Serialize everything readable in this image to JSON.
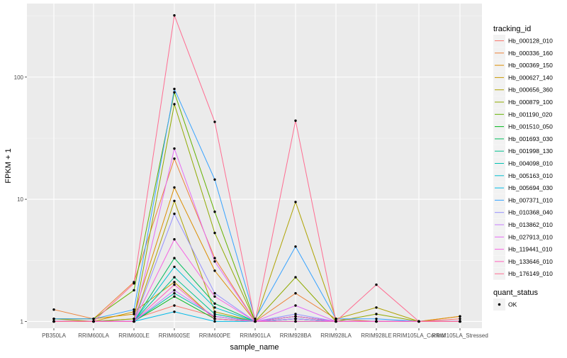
{
  "chart_data": {
    "type": "line",
    "title": "",
    "xlabel": "sample_name",
    "ylabel": "FPKM + 1",
    "y_scale": "log10",
    "ylim": [
      0.88,
      400
    ],
    "y_ticks": [
      1,
      10,
      100
    ],
    "y_tick_labels": [
      "1",
      "10",
      "100"
    ],
    "categories": [
      "PB350LA",
      "RRIM600LA",
      "RRIM600LE",
      "RRIM600SE",
      "RRIM600PE",
      "RRIM901LA",
      "RRIM928BA",
      "RRIM928LA",
      "RRIM928LE",
      "RRIM105LA_Control",
      "RRIM105LA_Stressed"
    ],
    "legend_title": "tracking_id",
    "legend_position": "right",
    "series": [
      {
        "name": "Hb_000128_010",
        "color": "#F8766D",
        "values": [
          1.0,
          1.0,
          1.05,
          1.35,
          1.1,
          1.0,
          1.05,
          1.0,
          1.0,
          1.0,
          1.05
        ]
      },
      {
        "name": "Hb_000336_160",
        "color": "#EC8239",
        "values": [
          1.25,
          1.05,
          2.1,
          21.5,
          3.3,
          1.0,
          1.7,
          1.05,
          1.0,
          1.0,
          1.1
        ]
      },
      {
        "name": "Hb_000369_150",
        "color": "#DB8E00",
        "values": [
          1.05,
          1.05,
          1.15,
          12.5,
          2.6,
          1.0,
          1.1,
          1.0,
          1.0,
          1.0,
          1.1
        ]
      },
      {
        "name": "Hb_000627_140",
        "color": "#C79800",
        "values": [
          1.0,
          1.0,
          1.2,
          2.1,
          1.05,
          1.0,
          1.0,
          1.0,
          1.0,
          1.0,
          1.0
        ]
      },
      {
        "name": "Hb_000656_360",
        "color": "#AEA200",
        "values": [
          1.05,
          1.0,
          1.0,
          9.7,
          1.2,
          1.0,
          9.5,
          1.05,
          1.3,
          1.0,
          1.0
        ]
      },
      {
        "name": "Hb_000879_100",
        "color": "#8FAA00",
        "values": [
          1.0,
          1.0,
          1.05,
          60.0,
          5.3,
          1.0,
          2.3,
          1.0,
          1.15,
          1.0,
          1.0
        ]
      },
      {
        "name": "Hb_001190_020",
        "color": "#64B200",
        "values": [
          1.05,
          1.05,
          1.8,
          75.0,
          7.9,
          1.0,
          1.1,
          1.0,
          1.0,
          1.0,
          1.0
        ]
      },
      {
        "name": "Hb_001510_050",
        "color": "#00B81B",
        "values": [
          1.0,
          1.0,
          1.0,
          1.6,
          1.05,
          1.0,
          1.05,
          1.0,
          1.0,
          1.0,
          1.0
        ]
      },
      {
        "name": "Hb_001693_030",
        "color": "#00BD5C",
        "values": [
          1.0,
          1.0,
          1.0,
          3.3,
          1.4,
          1.0,
          1.1,
          1.0,
          1.0,
          1.0,
          1.0
        ]
      },
      {
        "name": "Hb_001998_130",
        "color": "#00C08E",
        "values": [
          1.0,
          1.0,
          1.0,
          2.3,
          1.15,
          1.0,
          1.05,
          1.0,
          1.0,
          1.0,
          1.0
        ]
      },
      {
        "name": "Hb_004098_010",
        "color": "#00C1B2",
        "values": [
          1.0,
          1.0,
          1.0,
          1.7,
          1.1,
          1.0,
          1.05,
          1.0,
          1.0,
          1.0,
          1.0
        ]
      },
      {
        "name": "Hb_005163_010",
        "color": "#00BFD0",
        "values": [
          1.0,
          1.0,
          1.0,
          2.8,
          1.3,
          1.0,
          1.05,
          1.0,
          1.0,
          1.0,
          1.0
        ]
      },
      {
        "name": "Hb_005694_030",
        "color": "#00BAE8",
        "values": [
          1.0,
          1.0,
          1.0,
          1.2,
          1.0,
          1.0,
          1.0,
          1.0,
          1.0,
          1.0,
          1.0
        ]
      },
      {
        "name": "Hb_007371_010",
        "color": "#35A2FF",
        "values": [
          1.05,
          1.05,
          1.25,
          80.0,
          14.5,
          1.05,
          4.1,
          1.05,
          1.05,
          1.0,
          1.0
        ]
      },
      {
        "name": "Hb_010368_040",
        "color": "#9590FF",
        "values": [
          1.0,
          1.0,
          1.0,
          7.6,
          1.7,
          1.0,
          1.15,
          1.0,
          1.0,
          1.0,
          1.0
        ]
      },
      {
        "name": "Hb_013862_010",
        "color": "#C77CFF",
        "values": [
          1.0,
          1.0,
          1.0,
          1.8,
          1.1,
          1.0,
          1.05,
          1.0,
          1.0,
          1.0,
          1.0
        ]
      },
      {
        "name": "Hb_027913_010",
        "color": "#E56BF5",
        "values": [
          1.0,
          1.0,
          1.0,
          26.0,
          3.1,
          1.0,
          1.35,
          1.0,
          1.0,
          1.0,
          1.0
        ]
      },
      {
        "name": "Hb_119441_010",
        "color": "#F564E3",
        "values": [
          1.0,
          1.0,
          1.0,
          4.7,
          1.6,
          1.0,
          1.1,
          1.0,
          1.0,
          1.0,
          1.0
        ]
      },
      {
        "name": "Hb_133646_010",
        "color": "#FF62BC",
        "values": [
          1.0,
          1.0,
          1.0,
          2.0,
          1.05,
          1.0,
          1.0,
          1.0,
          1.0,
          1.0,
          1.0
        ]
      },
      {
        "name": "Hb_176149_010",
        "color": "#FF6C91",
        "values": [
          1.0,
          1.0,
          2.05,
          320.0,
          43.0,
          1.0,
          44.0,
          1.0,
          2.0,
          1.0,
          1.0
        ]
      }
    ],
    "secondary_legend": {
      "title": "quant_status",
      "entries": [
        "OK"
      ]
    },
    "grid": true,
    "panel_background": "#EBEBEB",
    "point_color": "#000000"
  }
}
